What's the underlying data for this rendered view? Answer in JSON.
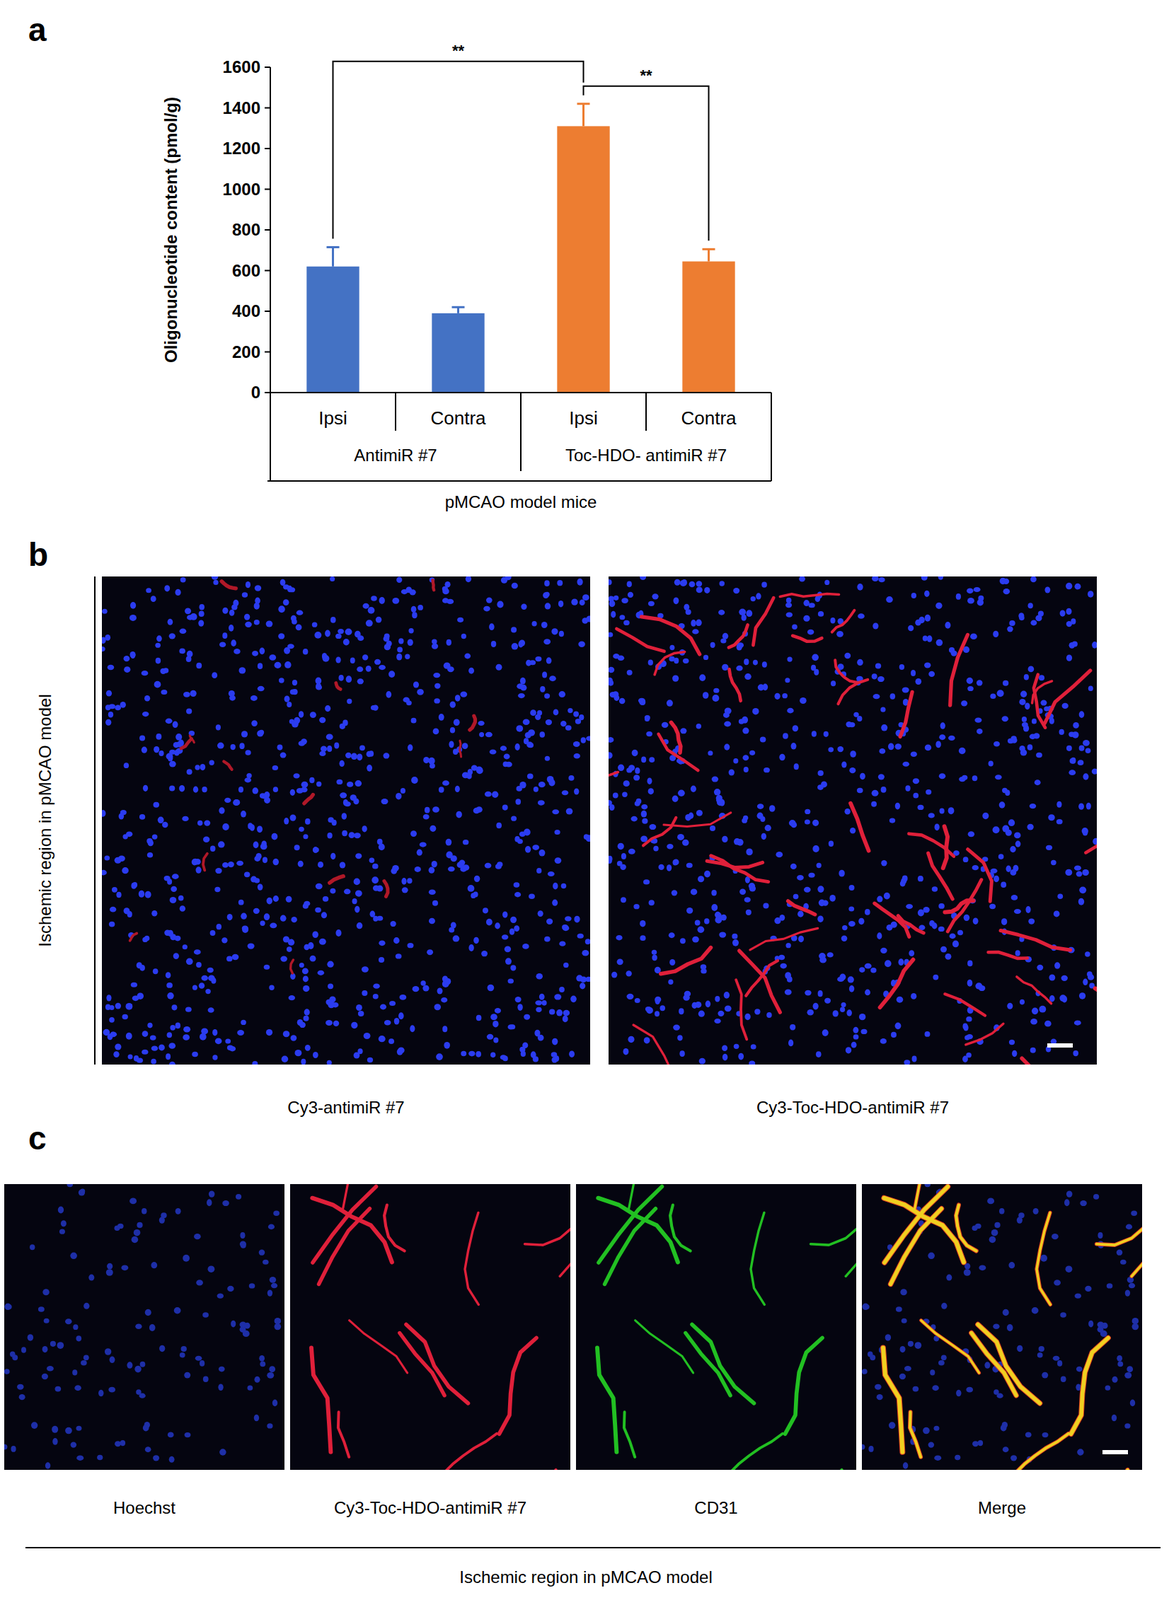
{
  "chart_data": {
    "type": "bar",
    "panel": "a",
    "ylabel": "Oligonucleotide content (pmol/g)",
    "xlabel": "pMCAO model mice",
    "categories": [
      "Ipsi",
      "Contra",
      "Ipsi",
      "Contra"
    ],
    "groups": [
      "AntimiR #7",
      "Toc-HDO- antimiR #7"
    ],
    "values": [
      620,
      390,
      1310,
      645
    ],
    "errors": [
      95,
      30,
      110,
      60
    ],
    "colors": [
      "#4472c4",
      "#4472c4",
      "#ed7d31",
      "#ed7d31"
    ],
    "ylim": [
      0,
      1600
    ],
    "yticks": [
      0,
      200,
      400,
      600,
      800,
      1000,
      1200,
      1400,
      1600
    ],
    "grid": false,
    "annotations": [
      {
        "text": "**",
        "from": 0,
        "to": 2
      },
      {
        "text": "**",
        "from": 2,
        "to": 3
      }
    ]
  },
  "images": {
    "b": {
      "panel": "b",
      "side_label": "Ischemic region in pMCAO model",
      "captions": [
        "Cy3-antimiR #7",
        "Cy3-Toc-HDO-antimiR #7"
      ]
    },
    "c": {
      "panel": "c",
      "captions": [
        "Hoechst",
        "Cy3-Toc-HDO-antimiR #7",
        "CD31",
        "Merge"
      ],
      "footer": "Ischemic region in pMCAO model"
    }
  }
}
